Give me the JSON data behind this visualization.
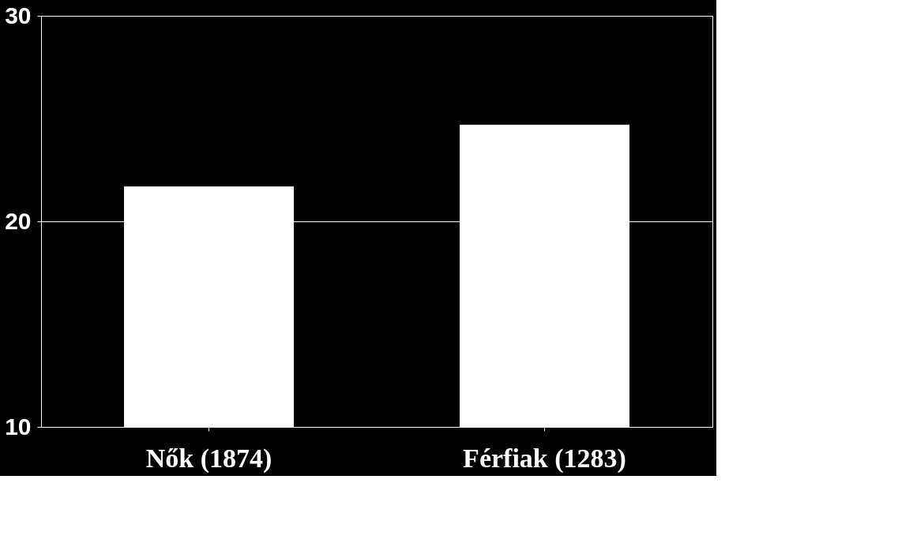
{
  "chart_data": {
    "type": "bar",
    "categories": [
      "Nők (1874)",
      "Férfiak (1283)"
    ],
    "values": [
      21.7,
      24.7
    ],
    "color": "#ffffff",
    "ylim": [
      10,
      30
    ],
    "yticks": [
      10,
      20,
      30
    ],
    "grid": "y"
  }
}
